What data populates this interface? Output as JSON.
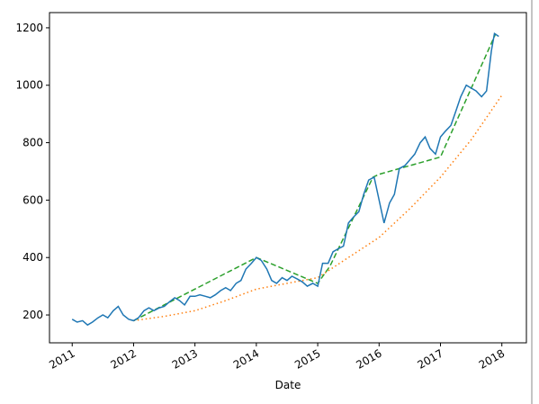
{
  "chart_data": {
    "type": "line",
    "x_label": "Date",
    "xlim": [
      2010.63,
      2018.4
    ],
    "xticks": [
      2011,
      2012,
      2013,
      2014,
      2015,
      2016,
      2017,
      2018
    ],
    "ylim": [
      103,
      1253
    ],
    "yticks": [
      200,
      400,
      600,
      800,
      1000,
      1200
    ],
    "grid": false,
    "series": [
      {
        "color": "#1f77b4",
        "linestyle": "solid",
        "x": [
          2011.0,
          2011.08,
          2011.17,
          2011.25,
          2011.33,
          2011.42,
          2011.5,
          2011.58,
          2011.67,
          2011.75,
          2011.83,
          2011.92,
          2012.0,
          2012.08,
          2012.17,
          2012.25,
          2012.33,
          2012.42,
          2012.5,
          2012.58,
          2012.67,
          2012.75,
          2012.83,
          2012.92,
          2013.0,
          2013.08,
          2013.17,
          2013.25,
          2013.33,
          2013.42,
          2013.5,
          2013.58,
          2013.67,
          2013.75,
          2013.83,
          2013.92,
          2014.0,
          2014.08,
          2014.17,
          2014.25,
          2014.33,
          2014.42,
          2014.5,
          2014.58,
          2014.67,
          2014.75,
          2014.83,
          2014.92,
          2015.0,
          2015.08,
          2015.17,
          2015.25,
          2015.33,
          2015.42,
          2015.5,
          2015.58,
          2015.67,
          2015.75,
          2015.83,
          2015.92,
          2016.0,
          2016.08,
          2016.17,
          2016.25,
          2016.33,
          2016.42,
          2016.5,
          2016.58,
          2016.67,
          2016.75,
          2016.83,
          2016.92,
          2017.0,
          2017.08,
          2017.17,
          2017.25,
          2017.33,
          2017.42,
          2017.5,
          2017.58,
          2017.67,
          2017.75,
          2017.83,
          2017.88,
          2017.95
        ],
        "values": [
          185,
          175,
          180,
          165,
          175,
          190,
          200,
          190,
          215,
          230,
          200,
          185,
          180,
          190,
          215,
          225,
          215,
          225,
          230,
          245,
          260,
          250,
          235,
          265,
          265,
          270,
          265,
          260,
          270,
          285,
          295,
          285,
          310,
          320,
          360,
          380,
          400,
          390,
          360,
          320,
          310,
          330,
          320,
          335,
          325,
          315,
          300,
          310,
          300,
          380,
          380,
          420,
          430,
          440,
          520,
          540,
          560,
          620,
          670,
          680,
          600,
          520,
          590,
          620,
          710,
          720,
          740,
          760,
          800,
          820,
          780,
          760,
          820,
          840,
          860,
          910,
          960,
          1000,
          990,
          980,
          960,
          980,
          1120,
          1180,
          1170
        ]
      },
      {
        "color": "#ff7f0e",
        "linestyle": "dotted",
        "x": [
          2012.0,
          2012.5,
          2013.0,
          2013.5,
          2014.0,
          2014.5,
          2015.0,
          2015.5,
          2016.0,
          2016.5,
          2017.0,
          2017.5,
          2018.0
        ],
        "values": [
          180,
          195,
          215,
          250,
          290,
          310,
          330,
          400,
          470,
          570,
          680,
          810,
          965
        ]
      },
      {
        "color": "#2ca02c",
        "linestyle": "dashed",
        "x": [
          2012.0,
          2014.0,
          2015.0,
          2015.2,
          2015.9,
          2016.0,
          2017.0,
          2017.9
        ],
        "values": [
          180,
          400,
          310,
          370,
          680,
          690,
          750,
          1180
        ]
      }
    ]
  }
}
